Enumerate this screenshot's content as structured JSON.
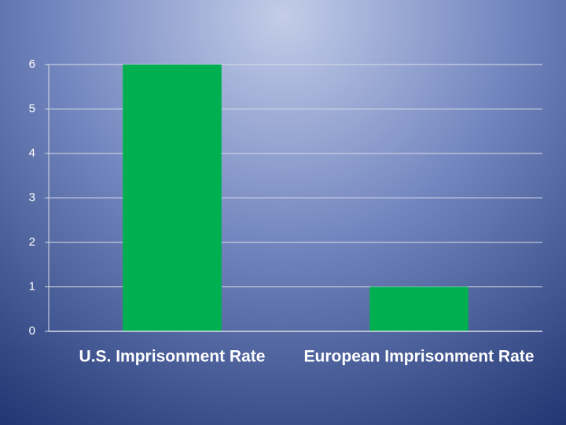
{
  "chart_data": {
    "type": "bar",
    "categories": [
      "U.S. Imprisonment Rate",
      "European Imprisonment Rate"
    ],
    "values": [
      6,
      1
    ],
    "color": "#00b050",
    "ylim": [
      0,
      6
    ],
    "yticks": [
      0,
      1,
      2,
      3,
      4,
      5,
      6
    ],
    "grid": true
  }
}
